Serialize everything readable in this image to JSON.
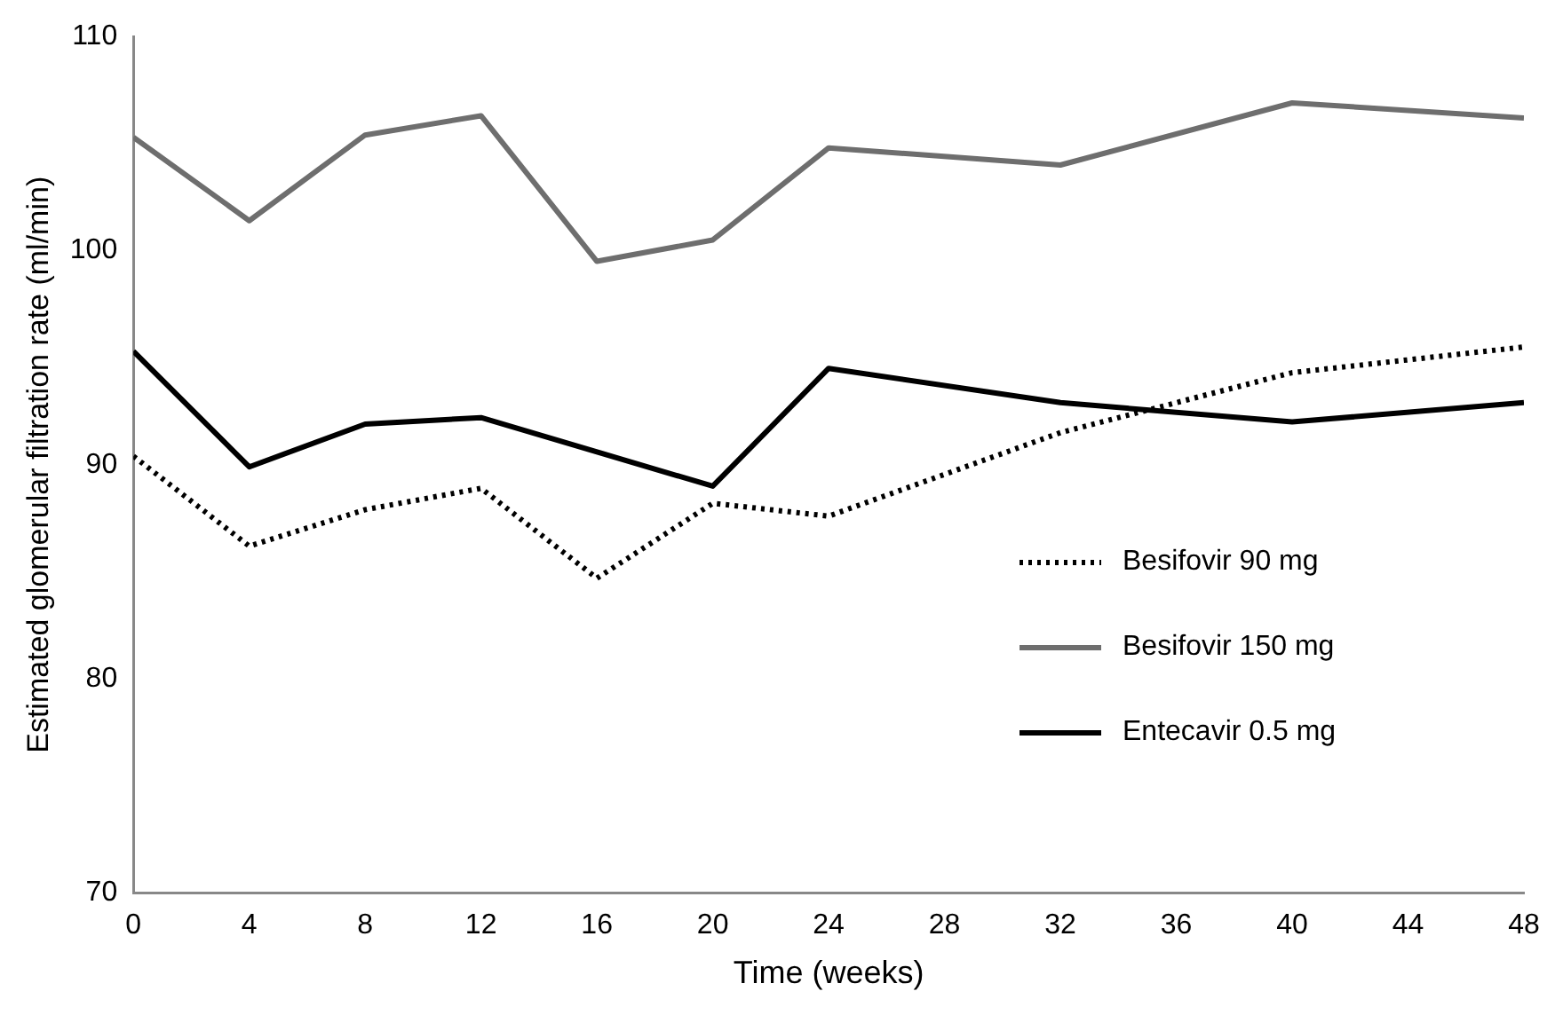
{
  "chart_data": {
    "type": "line",
    "xlabel": "Time (weeks)",
    "ylabel": "Estimated glomerular filtration rate (ml/min)",
    "x": [
      0,
      4,
      8,
      12,
      16,
      20,
      24,
      32,
      40,
      48
    ],
    "xlim": [
      0,
      48
    ],
    "xticks": [
      0,
      4,
      8,
      12,
      16,
      20,
      24,
      28,
      32,
      36,
      40,
      44,
      48
    ],
    "ylim": [
      70,
      110
    ],
    "yticks": [
      70,
      80,
      90,
      100,
      110
    ],
    "grid": false,
    "legend": "right",
    "marker": "none",
    "series": [
      {
        "name": "Besifovir 90 mg",
        "color": "#000000",
        "line_style": "dotted",
        "values": [
          90.4,
          86.2,
          87.9,
          88.9,
          84.7,
          88.2,
          87.6,
          91.5,
          94.3,
          95.5
        ]
      },
      {
        "name": "Besifovir 150 mg",
        "color": "#6e6e6e",
        "line_style": "solid",
        "values": [
          105.3,
          101.4,
          105.4,
          106.3,
          99.5,
          100.5,
          104.8,
          104.0,
          106.9,
          106.2
        ]
      },
      {
        "name": "Entecavir 0.5 mg",
        "color": "#000000",
        "line_style": "solid",
        "values": [
          95.3,
          89.9,
          91.9,
          92.2,
          null,
          89.0,
          94.5,
          92.9,
          92.0,
          92.9
        ]
      }
    ]
  }
}
